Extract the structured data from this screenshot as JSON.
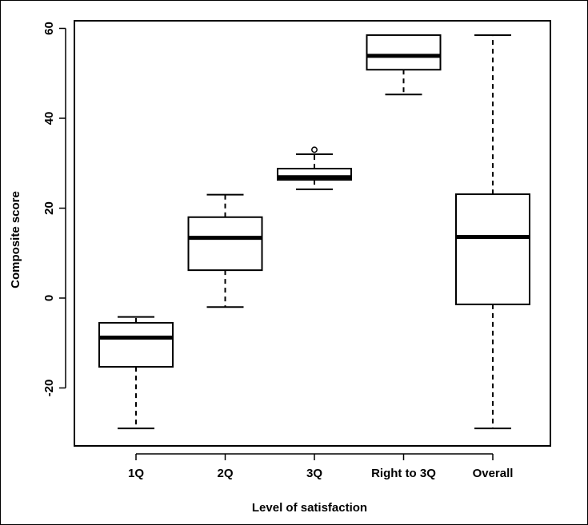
{
  "chart_data": {
    "type": "boxplot",
    "title": "",
    "xlabel": "Level of satisfaction",
    "ylabel": "Composite score",
    "ylim": [
      -33,
      60.5
    ],
    "yticks": [
      -20,
      0,
      20,
      40,
      60
    ],
    "ytick_labels": [
      "-20",
      "0",
      "20",
      "40",
      "60"
    ],
    "categories": [
      "1Q",
      "2Q",
      "3Q",
      "Right to 3Q",
      "Overall"
    ],
    "boxes": [
      {
        "label": "1Q",
        "whisker_low": -29,
        "q1": -15.3,
        "median": -8.8,
        "q3": -5.5,
        "whisker_high": -4.2,
        "outliers": []
      },
      {
        "label": "2Q",
        "whisker_low": -2,
        "q1": 6.2,
        "median": 13.4,
        "q3": 18,
        "whisker_high": 23,
        "outliers": []
      },
      {
        "label": "3Q",
        "whisker_low": 24.2,
        "q1": 26.3,
        "median": 26.9,
        "q3": 28.8,
        "whisker_high": 32,
        "outliers": [
          33
        ]
      },
      {
        "label": "Right to 3Q",
        "whisker_low": 45.3,
        "q1": 50.8,
        "median": 53.9,
        "q3": 58.5,
        "whisker_high": 58.5,
        "outliers": []
      },
      {
        "label": "Overall",
        "whisker_low": -29,
        "q1": -1.4,
        "median": 13.6,
        "q3": 23.1,
        "whisker_high": 58.5,
        "outliers": []
      }
    ],
    "grid": false,
    "legend": "none"
  }
}
